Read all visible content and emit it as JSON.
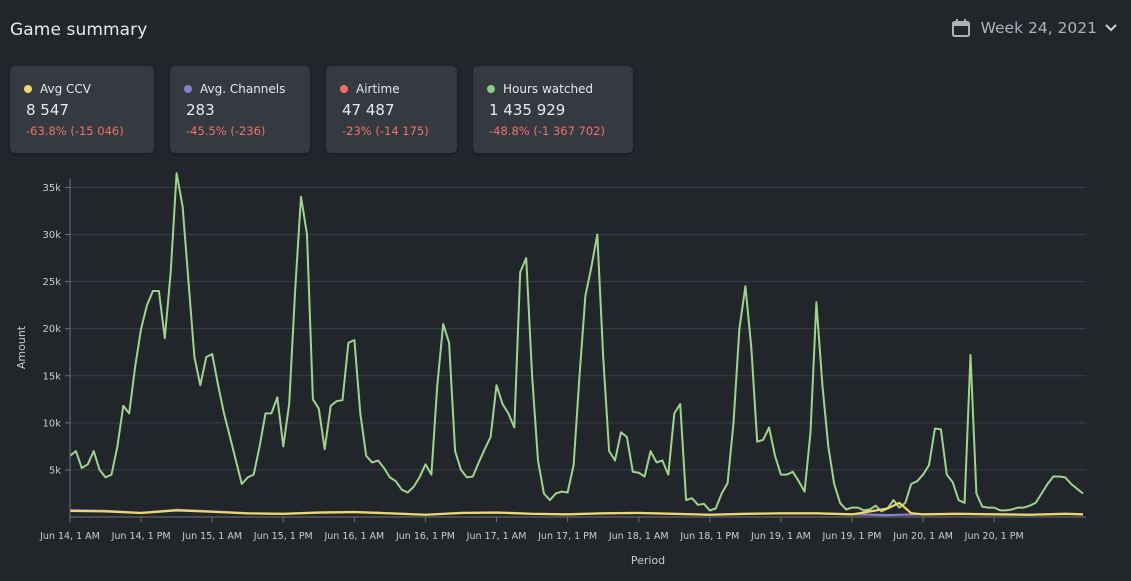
{
  "header": {
    "title": "Game summary",
    "week_label": "Week 24, 2021"
  },
  "cards": [
    {
      "label": "Avg CCV",
      "value": "8 547",
      "delta": "-63.8% (-15 046)",
      "color": "#f1d66a"
    },
    {
      "label": "Avg. Channels",
      "value": "283",
      "delta": "-45.5% (-236)",
      "color": "#8c7fd0"
    },
    {
      "label": "Airtime",
      "value": "47 487",
      "delta": "-23% (-14 175)",
      "color": "#ee6d66"
    },
    {
      "label": "Hours watched",
      "value": "1 435 929",
      "delta": "-48.8% (-1 367 702)",
      "color": "#86cf85"
    }
  ],
  "chart_data": {
    "type": "line",
    "xlabel": "Period",
    "ylabel": "Amount",
    "ylim": [
      0,
      36000
    ],
    "yticks": [
      5000,
      10000,
      15000,
      20000,
      25000,
      30000,
      35000
    ],
    "ytick_labels": [
      "5k",
      "10k",
      "15k",
      "20k",
      "25k",
      "30k",
      "35k"
    ],
    "x_tick_labels": [
      "Jun 14, 1 AM",
      "Jun 14, 1 PM",
      "Jun 15, 1 AM",
      "Jun 15, 1 PM",
      "Jun 16, 1 AM",
      "Jun 16, 1 PM",
      "Jun 17, 1 AM",
      "Jun 17, 1 PM",
      "Jun 18, 1 AM",
      "Jun 18, 1 PM",
      "Jun 19, 1 AM",
      "Jun 19, 1 PM",
      "Jun 20, 1 AM",
      "Jun 20, 1 PM"
    ],
    "x_range_hours": [
      0,
      168
    ],
    "grid": "horizontal",
    "series": [
      {
        "color": "#9fd38f",
        "points": [
          [
            0,
            6500
          ],
          [
            1,
            7000
          ],
          [
            2,
            5200
          ],
          [
            3,
            5600
          ],
          [
            4,
            7000
          ],
          [
            5,
            5000
          ],
          [
            6,
            4200
          ],
          [
            7,
            4500
          ],
          [
            8,
            7500
          ],
          [
            9,
            11800
          ],
          [
            10,
            11000
          ],
          [
            11,
            16000
          ],
          [
            12,
            20000
          ],
          [
            13,
            22500
          ],
          [
            14,
            24000
          ],
          [
            15,
            24000
          ],
          [
            16,
            19000
          ],
          [
            17,
            26000
          ],
          [
            18,
            36500
          ],
          [
            19,
            33000
          ],
          [
            20,
            25000
          ],
          [
            21,
            17000
          ],
          [
            22,
            14000
          ],
          [
            23,
            17000
          ],
          [
            24,
            17300
          ],
          [
            25,
            14000
          ],
          [
            26,
            11000
          ],
          [
            27,
            8500
          ],
          [
            28,
            6000
          ],
          [
            29,
            3500
          ],
          [
            30,
            4200
          ],
          [
            31,
            4500
          ],
          [
            32,
            7500
          ],
          [
            33,
            11000
          ],
          [
            34,
            11000
          ],
          [
            35,
            12700
          ],
          [
            36,
            7500
          ],
          [
            37,
            12000
          ],
          [
            38,
            24000
          ],
          [
            39,
            34000
          ],
          [
            40,
            30000
          ],
          [
            41,
            12500
          ],
          [
            42,
            11500
          ],
          [
            43,
            7200
          ],
          [
            44,
            11800
          ],
          [
            45,
            12300
          ],
          [
            46,
            12400
          ],
          [
            47,
            18500
          ],
          [
            48,
            18800
          ],
          [
            49,
            11000
          ],
          [
            50,
            6500
          ],
          [
            51,
            5800
          ],
          [
            52,
            6000
          ],
          [
            53,
            5200
          ],
          [
            54,
            4200
          ],
          [
            55,
            3800
          ],
          [
            56,
            2900
          ],
          [
            57,
            2600
          ],
          [
            58,
            3200
          ],
          [
            59,
            4200
          ],
          [
            60,
            5600
          ],
          [
            61,
            4500
          ],
          [
            62,
            14000
          ],
          [
            63,
            20500
          ],
          [
            64,
            18500
          ],
          [
            65,
            7000
          ],
          [
            66,
            5000
          ],
          [
            67,
            4200
          ],
          [
            68,
            4300
          ],
          [
            69,
            5800
          ],
          [
            70,
            7200
          ],
          [
            71,
            8500
          ],
          [
            72,
            14000
          ],
          [
            73,
            12000
          ],
          [
            74,
            11000
          ],
          [
            75,
            9500
          ],
          [
            76,
            26000
          ],
          [
            77,
            27500
          ],
          [
            78,
            15000
          ],
          [
            79,
            6000
          ],
          [
            80,
            2500
          ],
          [
            81,
            1800
          ],
          [
            82,
            2500
          ],
          [
            83,
            2700
          ],
          [
            84,
            2600
          ],
          [
            85,
            5500
          ],
          [
            86,
            15000
          ],
          [
            87,
            23500
          ],
          [
            88,
            26500
          ],
          [
            89,
            30000
          ],
          [
            90,
            17000
          ],
          [
            91,
            7000
          ],
          [
            92,
            6000
          ],
          [
            93,
            9000
          ],
          [
            94,
            8500
          ],
          [
            95,
            4800
          ],
          [
            96,
            4700
          ],
          [
            97,
            4300
          ],
          [
            98,
            7000
          ],
          [
            99,
            5800
          ],
          [
            100,
            6000
          ],
          [
            101,
            4500
          ],
          [
            102,
            11000
          ],
          [
            103,
            12000
          ],
          [
            104,
            1800
          ],
          [
            105,
            2000
          ],
          [
            106,
            1300
          ],
          [
            107,
            1400
          ],
          [
            108,
            700
          ],
          [
            109,
            900
          ],
          [
            110,
            2500
          ],
          [
            111,
            3600
          ],
          [
            112,
            10000
          ],
          [
            113,
            20000
          ],
          [
            114,
            24500
          ],
          [
            115,
            18000
          ],
          [
            116,
            8000
          ],
          [
            117,
            8200
          ],
          [
            118,
            9500
          ],
          [
            119,
            6500
          ],
          [
            120,
            4500
          ],
          [
            121,
            4500
          ],
          [
            122,
            4800
          ],
          [
            123,
            3800
          ],
          [
            124,
            2700
          ],
          [
            125,
            9000
          ],
          [
            126,
            22800
          ],
          [
            127,
            14000
          ],
          [
            128,
            7500
          ],
          [
            129,
            3500
          ],
          [
            130,
            1500
          ],
          [
            131,
            800
          ],
          [
            132,
            1000
          ],
          [
            133,
            1000
          ],
          [
            134,
            700
          ],
          [
            135,
            800
          ],
          [
            136,
            1200
          ],
          [
            137,
            600
          ],
          [
            138,
            900
          ],
          [
            139,
            1800
          ],
          [
            140,
            1000
          ],
          [
            141,
            1500
          ],
          [
            142,
            3500
          ],
          [
            143,
            3800
          ],
          [
            144,
            4500
          ],
          [
            145,
            5500
          ],
          [
            146,
            9400
          ],
          [
            147,
            9300
          ],
          [
            148,
            4500
          ],
          [
            149,
            3700
          ],
          [
            150,
            1800
          ],
          [
            151,
            1500
          ],
          [
            152,
            17200
          ],
          [
            153,
            2500
          ],
          [
            154,
            1100
          ],
          [
            155,
            1000
          ],
          [
            156,
            1000
          ],
          [
            157,
            700
          ],
          [
            158,
            700
          ],
          [
            159,
            800
          ],
          [
            160,
            1000
          ],
          [
            161,
            1000
          ],
          [
            162,
            1200
          ],
          [
            163,
            1500
          ],
          [
            164,
            2500
          ],
          [
            165,
            3500
          ],
          [
            166,
            4300
          ],
          [
            167,
            4300
          ],
          [
            168,
            4200
          ],
          [
            169,
            3500
          ],
          [
            170,
            3000
          ],
          [
            171,
            2500
          ]
        ]
      },
      {
        "color": "#8c7fd0",
        "points": [
          [
            0,
            700
          ],
          [
            6,
            650
          ],
          [
            12,
            450
          ],
          [
            18,
            750
          ],
          [
            24,
            600
          ],
          [
            30,
            400
          ],
          [
            36,
            350
          ],
          [
            42,
            500
          ],
          [
            48,
            550
          ],
          [
            54,
            400
          ],
          [
            60,
            250
          ],
          [
            66,
            450
          ],
          [
            72,
            500
          ],
          [
            78,
            350
          ],
          [
            84,
            300
          ],
          [
            90,
            400
          ],
          [
            96,
            450
          ],
          [
            102,
            350
          ],
          [
            108,
            250
          ],
          [
            114,
            350
          ],
          [
            120,
            400
          ],
          [
            126,
            400
          ],
          [
            132,
            300
          ],
          [
            138,
            200
          ],
          [
            144,
            300
          ],
          [
            150,
            350
          ],
          [
            156,
            300
          ],
          [
            162,
            250
          ],
          [
            168,
            350
          ],
          [
            171,
            300
          ]
        ]
      },
      {
        "color": "#f1d66a",
        "points": [
          [
            0,
            650
          ],
          [
            6,
            600
          ],
          [
            12,
            420
          ],
          [
            18,
            700
          ],
          [
            24,
            550
          ],
          [
            30,
            380
          ],
          [
            36,
            330
          ],
          [
            42,
            470
          ],
          [
            48,
            520
          ],
          [
            54,
            380
          ],
          [
            60,
            230
          ],
          [
            66,
            420
          ],
          [
            72,
            470
          ],
          [
            78,
            330
          ],
          [
            84,
            280
          ],
          [
            90,
            380
          ],
          [
            96,
            420
          ],
          [
            102,
            330
          ],
          [
            108,
            230
          ],
          [
            114,
            330
          ],
          [
            120,
            380
          ],
          [
            126,
            380
          ],
          [
            132,
            280
          ],
          [
            138,
            900
          ],
          [
            140,
            1500
          ],
          [
            142,
            400
          ],
          [
            144,
            280
          ],
          [
            150,
            330
          ],
          [
            156,
            280
          ],
          [
            162,
            230
          ],
          [
            168,
            330
          ],
          [
            171,
            280
          ]
        ]
      }
    ]
  }
}
